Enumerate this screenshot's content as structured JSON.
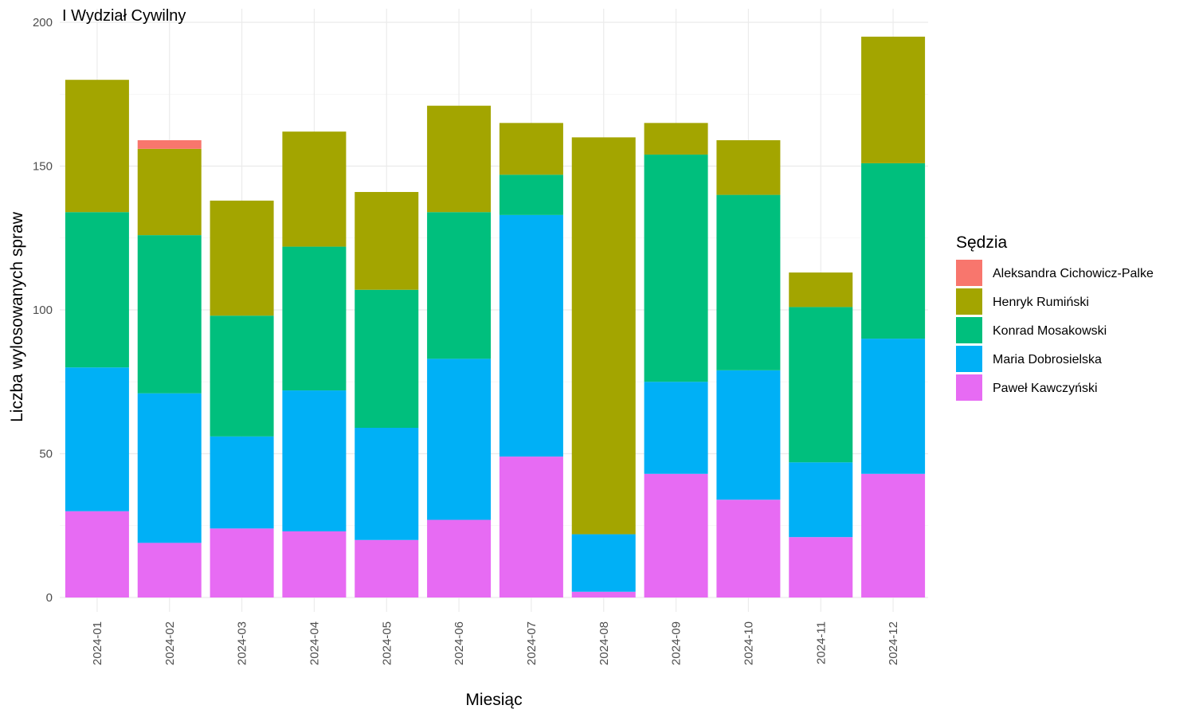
{
  "chart_data": {
    "type": "bar",
    "stacked": true,
    "title": "I Wydział Cywilny",
    "xlabel": "Miesiąc",
    "ylabel": "Liczba wylosowanych spraw",
    "ylim": [
      0,
      200
    ],
    "yticks": [
      0,
      50,
      100,
      150,
      200
    ],
    "grid": true,
    "legend_title": "Sędzia",
    "legend_position": "right",
    "categories": [
      "2024-01",
      "2024-02",
      "2024-03",
      "2024-04",
      "2024-05",
      "2024-06",
      "2024-07",
      "2024-08",
      "2024-09",
      "2024-10",
      "2024-11",
      "2024-12"
    ],
    "series": [
      {
        "name": "Aleksandra Cichowicz-Palke",
        "color": "#F8766D",
        "values": [
          0,
          3,
          0,
          0,
          0,
          0,
          0,
          0,
          0,
          0,
          0,
          0
        ]
      },
      {
        "name": "Henryk Rumiński",
        "color": "#A3A500",
        "values": [
          46,
          30,
          40,
          40,
          34,
          37,
          18,
          138,
          11,
          19,
          12,
          44
        ]
      },
      {
        "name": "Konrad Mosakowski",
        "color": "#00BF7D",
        "values": [
          54,
          55,
          42,
          50,
          48,
          51,
          14,
          0,
          79,
          61,
          54,
          61
        ]
      },
      {
        "name": "Maria Dobrosielska",
        "color": "#00B0F6",
        "values": [
          50,
          52,
          32,
          49,
          39,
          56,
          84,
          20,
          32,
          45,
          26,
          47
        ]
      },
      {
        "name": "Paweł Kawczyński",
        "color": "#E76BF3",
        "values": [
          30,
          19,
          24,
          23,
          20,
          27,
          49,
          2,
          43,
          34,
          21,
          43
        ]
      }
    ]
  }
}
